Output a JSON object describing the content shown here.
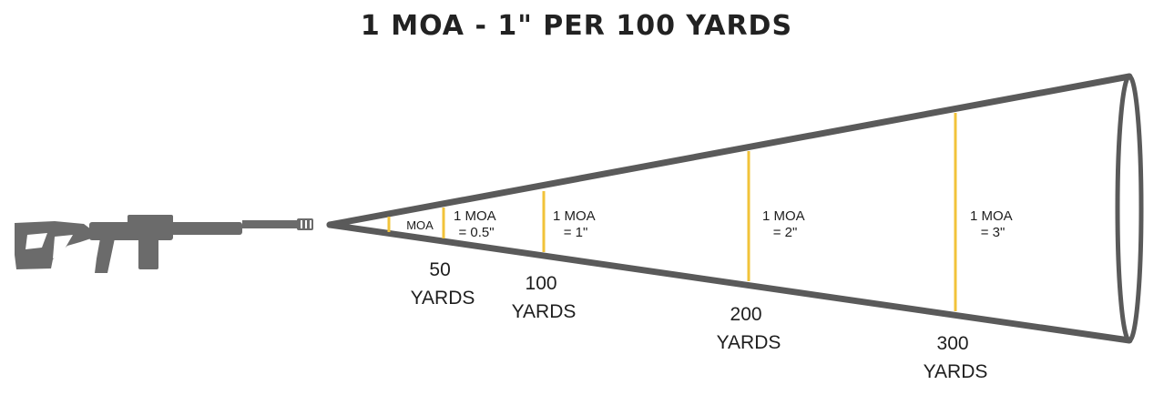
{
  "title": "1 MOA - 1\" PER 100 YARDS",
  "colors": {
    "cone": "#5a5a5a",
    "marker": "#f2c33a",
    "rifle": "#6b6b6b",
    "text": "#1e1e1e"
  },
  "icons": {
    "rifle": "rifle-icon"
  },
  "markers": [
    {
      "id": "origin",
      "label_lines": [
        "MOA"
      ],
      "distance_lines": []
    },
    {
      "id": "50-yards",
      "label_lines": [
        "1 MOA",
        "= 0.5\""
      ],
      "distance_lines": [
        "50",
        "YARDS"
      ]
    },
    {
      "id": "100-yards",
      "label_lines": [
        "1 MOA",
        "= 1\""
      ],
      "distance_lines": [
        "100",
        "YARDS"
      ]
    },
    {
      "id": "200-yards",
      "label_lines": [
        "1 MOA",
        "= 2\""
      ],
      "distance_lines": [
        "200",
        "YARDS"
      ]
    },
    {
      "id": "300-yards",
      "label_lines": [
        "1 MOA",
        "= 3\""
      ],
      "distance_lines": [
        "300",
        "YARDS"
      ]
    }
  ]
}
